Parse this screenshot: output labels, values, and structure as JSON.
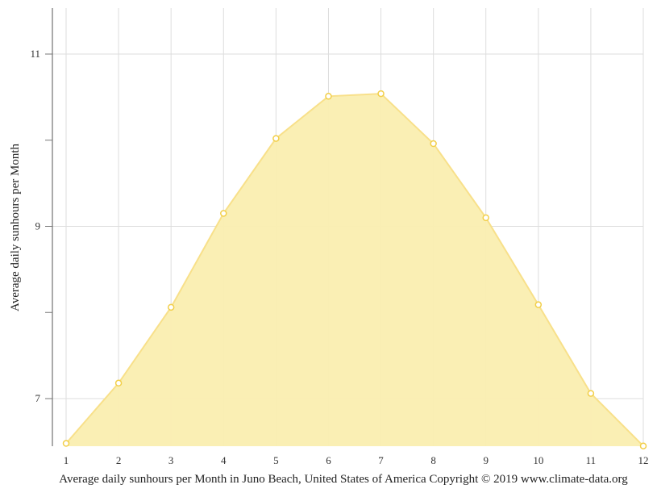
{
  "chart_data": {
    "type": "area",
    "title": "",
    "caption": "Average daily sunhours per Month in Juno Beach, United States of America Copyright © 2019 www.climate-data.org",
    "xlabel": "",
    "ylabel": "Average daily sunhours per Month",
    "categories": [
      "1",
      "2",
      "3",
      "4",
      "5",
      "6",
      "7",
      "8",
      "9",
      "10",
      "11",
      "12"
    ],
    "series": [
      {
        "name": "Average daily sunhours",
        "values": [
          6.48,
          7.18,
          8.06,
          9.15,
          10.02,
          10.51,
          10.54,
          9.96,
          9.1,
          8.09,
          7.06,
          6.45
        ],
        "color": "#f5d76e"
      }
    ],
    "yticks": [
      7,
      9,
      11
    ],
    "ylim": [
      6.45,
      11.55
    ],
    "grid": true,
    "legend": "none"
  },
  "colors": {
    "fill": "#faeeb0",
    "line": "#f8e08a",
    "marker": "#f2cf4a",
    "grid": "#dddddd",
    "axis": "#555555"
  }
}
